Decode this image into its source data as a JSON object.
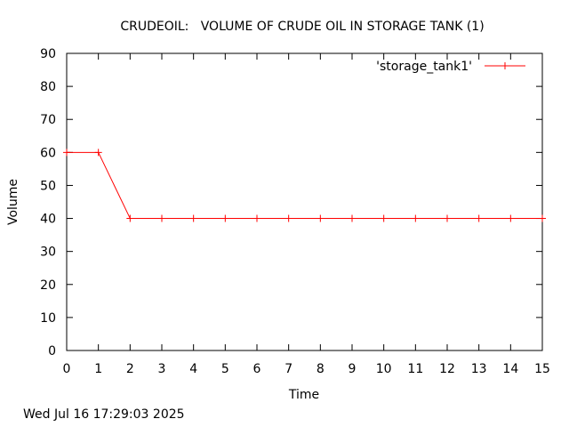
{
  "chart_data": {
    "type": "line",
    "title": "CRUDEOIL:   VOLUME OF CRUDE OIL IN STORAGE TANK (1)",
    "xlabel": "Time",
    "ylabel": "Volume",
    "xlim": [
      0,
      15
    ],
    "ylim": [
      0,
      90
    ],
    "x_ticks": [
      0,
      1,
      2,
      3,
      4,
      5,
      6,
      7,
      8,
      9,
      10,
      11,
      12,
      13,
      14,
      15
    ],
    "y_ticks": [
      0,
      10,
      20,
      30,
      40,
      50,
      60,
      70,
      80,
      90
    ],
    "grid": false,
    "legend_position": "top-right",
    "series": [
      {
        "name": "'storage_tank1'",
        "color": "#ff0000",
        "marker": "plus",
        "points": [
          [
            0,
            60
          ],
          [
            1,
            60
          ],
          [
            2,
            40
          ],
          [
            3,
            40
          ],
          [
            4,
            40
          ],
          [
            5,
            40
          ],
          [
            6,
            40
          ],
          [
            7,
            40
          ],
          [
            8,
            40
          ],
          [
            9,
            40
          ],
          [
            10,
            40
          ],
          [
            11,
            40
          ],
          [
            12,
            40
          ],
          [
            13,
            40
          ],
          [
            14,
            40
          ],
          [
            15,
            40
          ]
        ]
      }
    ]
  },
  "footer": {
    "timestamp": "Wed Jul 16 17:29:03 2025"
  }
}
